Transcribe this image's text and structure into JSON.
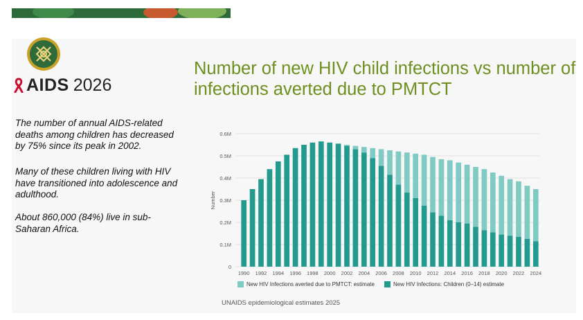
{
  "header": {
    "brand": "AIDS",
    "year": "2026",
    "logo_icon": "conference-emblem-icon",
    "ribbon_icon": "red-ribbon-icon",
    "ribbon_color": "#c8102e"
  },
  "title": "Number of new HIV child infections vs number of infections averted due to PMTCT",
  "paragraphs": [
    "The number of annual AIDS-related deaths among children has decreased by 75% since its peak in 2002.",
    "Many of these children living with HIV have transitioned into adolescence and adulthood.",
    "About 860,000 (84%) live in sub-Saharan Africa."
  ],
  "source": "UNAIDS epidemiological estimates 2025",
  "colors": {
    "title": "#6e8f1f",
    "averted": "#7fcbc3",
    "infections": "#239a8e"
  },
  "chart_data": {
    "type": "bar",
    "stacked": true,
    "ylabel": "Number",
    "ylim": [
      0,
      600000
    ],
    "yticks": [
      "0",
      "0.1M",
      "0.2M",
      "0.3M",
      "0.4M",
      "0.5M",
      "0.6M"
    ],
    "grid": true,
    "legend_position": "bottom",
    "categories": [
      "1990",
      "1991",
      "1992",
      "1993",
      "1994",
      "1995",
      "1996",
      "1997",
      "1998",
      "1999",
      "2000",
      "2001",
      "2002",
      "2003",
      "2004",
      "2005",
      "2006",
      "2007",
      "2008",
      "2009",
      "2010",
      "2011",
      "2012",
      "2013",
      "2014",
      "2015",
      "2016",
      "2017",
      "2018",
      "2019",
      "2020",
      "2021",
      "2022",
      "2023",
      "2024"
    ],
    "series": [
      {
        "name": "New HIV Infections: Children (0–14) estimate",
        "values": [
          300000,
          350000,
          395000,
          440000,
          475000,
          505000,
          535000,
          550000,
          560000,
          565000,
          560000,
          555000,
          545000,
          530000,
          515000,
          490000,
          455000,
          415000,
          370000,
          335000,
          310000,
          275000,
          245000,
          230000,
          210000,
          200000,
          195000,
          180000,
          165000,
          155000,
          145000,
          140000,
          135000,
          125000,
          115000
        ]
      },
      {
        "name": "New HIV Infections averted due to PMTCT: estimate",
        "values": [
          0,
          0,
          0,
          0,
          0,
          0,
          0,
          0,
          0,
          0,
          0,
          0,
          5000,
          15000,
          25000,
          45000,
          75000,
          110000,
          150000,
          180000,
          200000,
          230000,
          250000,
          255000,
          270000,
          270000,
          265000,
          270000,
          275000,
          270000,
          265000,
          255000,
          250000,
          240000,
          235000
        ]
      }
    ]
  }
}
